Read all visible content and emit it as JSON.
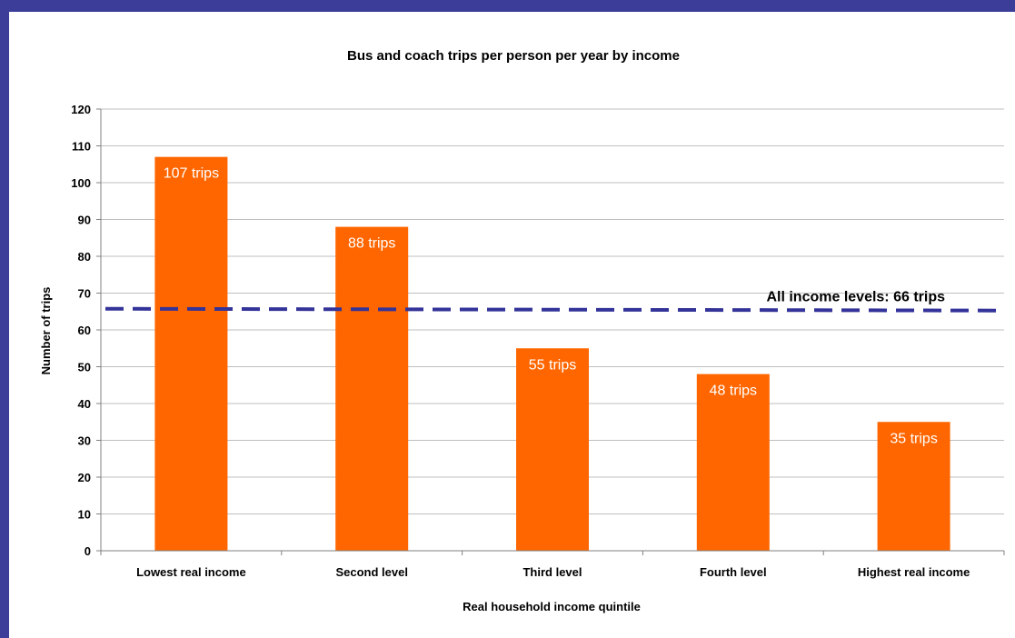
{
  "chart_data": {
    "type": "bar",
    "title": "Bus and coach trips per person per year by income",
    "xlabel": "Real household income quintile",
    "ylabel": "Number of trips",
    "categories": [
      "Lowest real income",
      "Second level",
      "Third level",
      "Fourth level",
      "Highest real income"
    ],
    "values": [
      107,
      88,
      55,
      48,
      35
    ],
    "data_labels": [
      "107 trips",
      "88 trips",
      "55 trips",
      "48 trips",
      "35 trips"
    ],
    "ylim": [
      0,
      120
    ],
    "yticks": [
      0,
      10,
      20,
      30,
      40,
      50,
      60,
      70,
      80,
      90,
      100,
      110,
      120
    ],
    "grid": true,
    "legend": "none",
    "reference_line": {
      "value": 65.5,
      "label": "All income levels: 66 trips",
      "style": "dashed"
    },
    "colors": {
      "bar": "#FF6600",
      "reference_line": "#333399",
      "frame": "#3B3D99",
      "grid": "#BFBFBF"
    }
  }
}
